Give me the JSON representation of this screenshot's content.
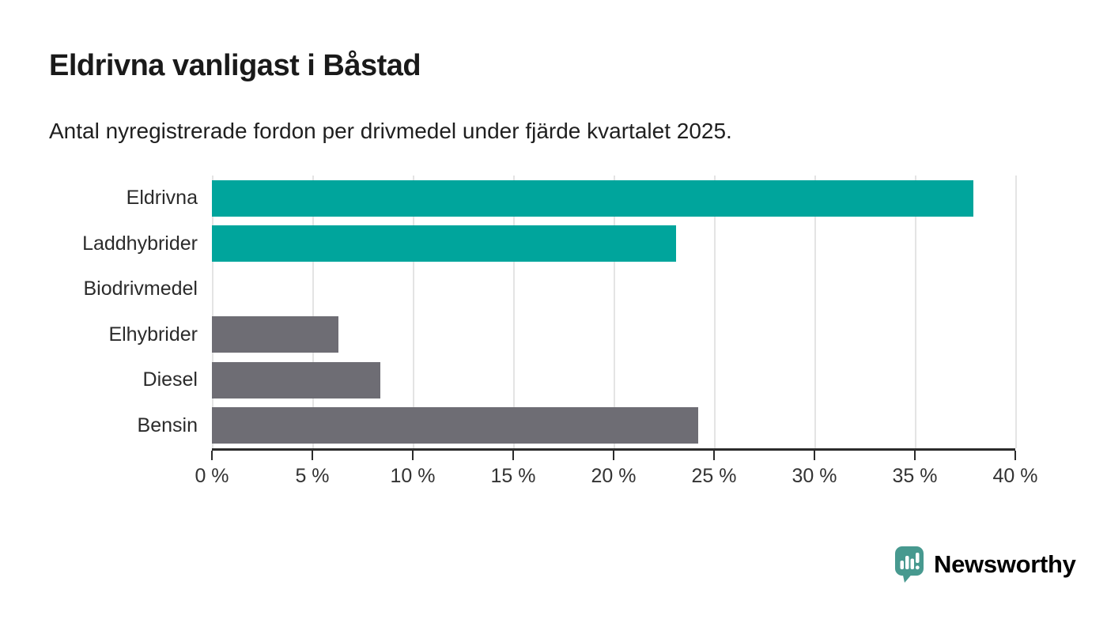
{
  "page": {
    "title": "Eldrivna vanligast i Båstad",
    "subtitle": "Antal nyregistrerade fordon per drivmedel under fjärde kvartalet 2025."
  },
  "chart_data": {
    "type": "bar",
    "orientation": "horizontal",
    "title": "Eldrivna vanligast i Båstad",
    "subtitle": "Antal nyregistrerade fordon per drivmedel under fjärde kvartalet 2025.",
    "categories": [
      "Eldrivna",
      "Laddhybrider",
      "Biodrivmedel",
      "Elhybrider",
      "Diesel",
      "Bensin"
    ],
    "values": [
      37.9,
      23.1,
      0,
      6.3,
      8.4,
      24.2
    ],
    "bar_colors": [
      "#00a59c",
      "#00a59c",
      "#00a59c",
      "#6e6d74",
      "#6e6d74",
      "#6e6d74"
    ],
    "highlight_color": "#00a59c",
    "default_color": "#6e6d74",
    "xlabel": "",
    "ylabel": "",
    "xlim": [
      0,
      40
    ],
    "xticks": [
      0,
      5,
      10,
      15,
      20,
      25,
      30,
      35,
      40
    ],
    "xtick_labels": [
      "0 %",
      "5 %",
      "10 %",
      "15 %",
      "20 %",
      "25 %",
      "30 %",
      "35 %",
      "40 %"
    ],
    "grid": "vertical",
    "gridline_color": "#e4e4e4",
    "axis_color": "#2b2b2b",
    "legend": "none"
  },
  "branding": {
    "logo_text": "Newsworthy",
    "logo_color": "#47998f",
    "logo_icon": "newsworthy-chart-bubble-icon"
  }
}
